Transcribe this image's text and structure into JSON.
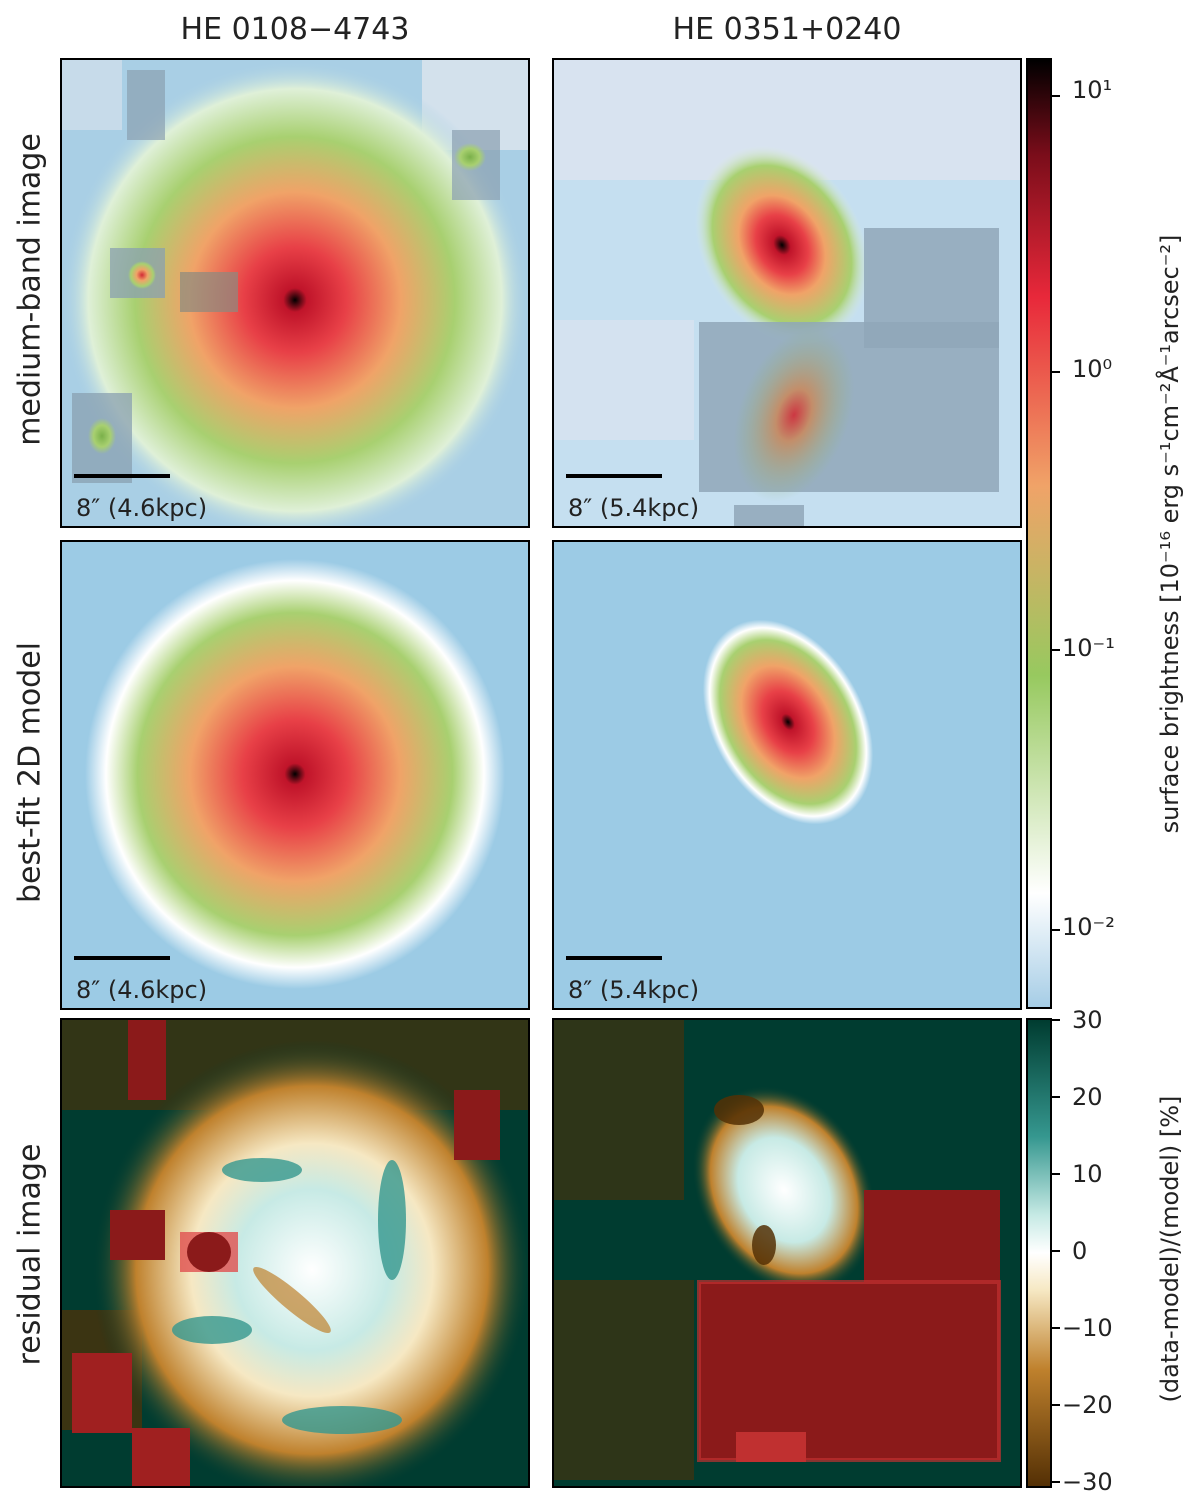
{
  "columns": [
    "HE 0108−4743",
    "HE 0351+0240"
  ],
  "rows": [
    "medium-band image",
    "best-fit 2D model",
    "residual image"
  ],
  "scalebars": [
    "8″ (4.6kpc)",
    "8″ (5.4kpc)"
  ],
  "colorbar_top": {
    "label": "surface brightness [10⁻¹⁶ erg s⁻¹cm⁻²Å⁻¹arcsec⁻²]",
    "ticks": [
      "10¹",
      "10⁰",
      "10⁻¹",
      "10⁻²"
    ],
    "tick_values": [
      10,
      1,
      0.1,
      0.01
    ],
    "range": [
      0.006,
      13
    ],
    "colors": [
      "#a6cde6",
      "#ffffff",
      "#97c95f",
      "#f0a368",
      "#e8283a",
      "#000000"
    ]
  },
  "colorbar_bottom": {
    "label": "(data-model)/(model) [%]",
    "ticks": [
      "30",
      "20",
      "10",
      "0",
      "−10",
      "−20",
      "−30"
    ],
    "tick_values": [
      30,
      20,
      10,
      0,
      -10,
      -20,
      -30
    ],
    "range": [
      -30,
      30
    ],
    "colors": [
      "#543005",
      "#bf812d",
      "#f6e8c3",
      "#ffffff",
      "#c7eae5",
      "#35978f",
      "#003c30"
    ]
  }
}
